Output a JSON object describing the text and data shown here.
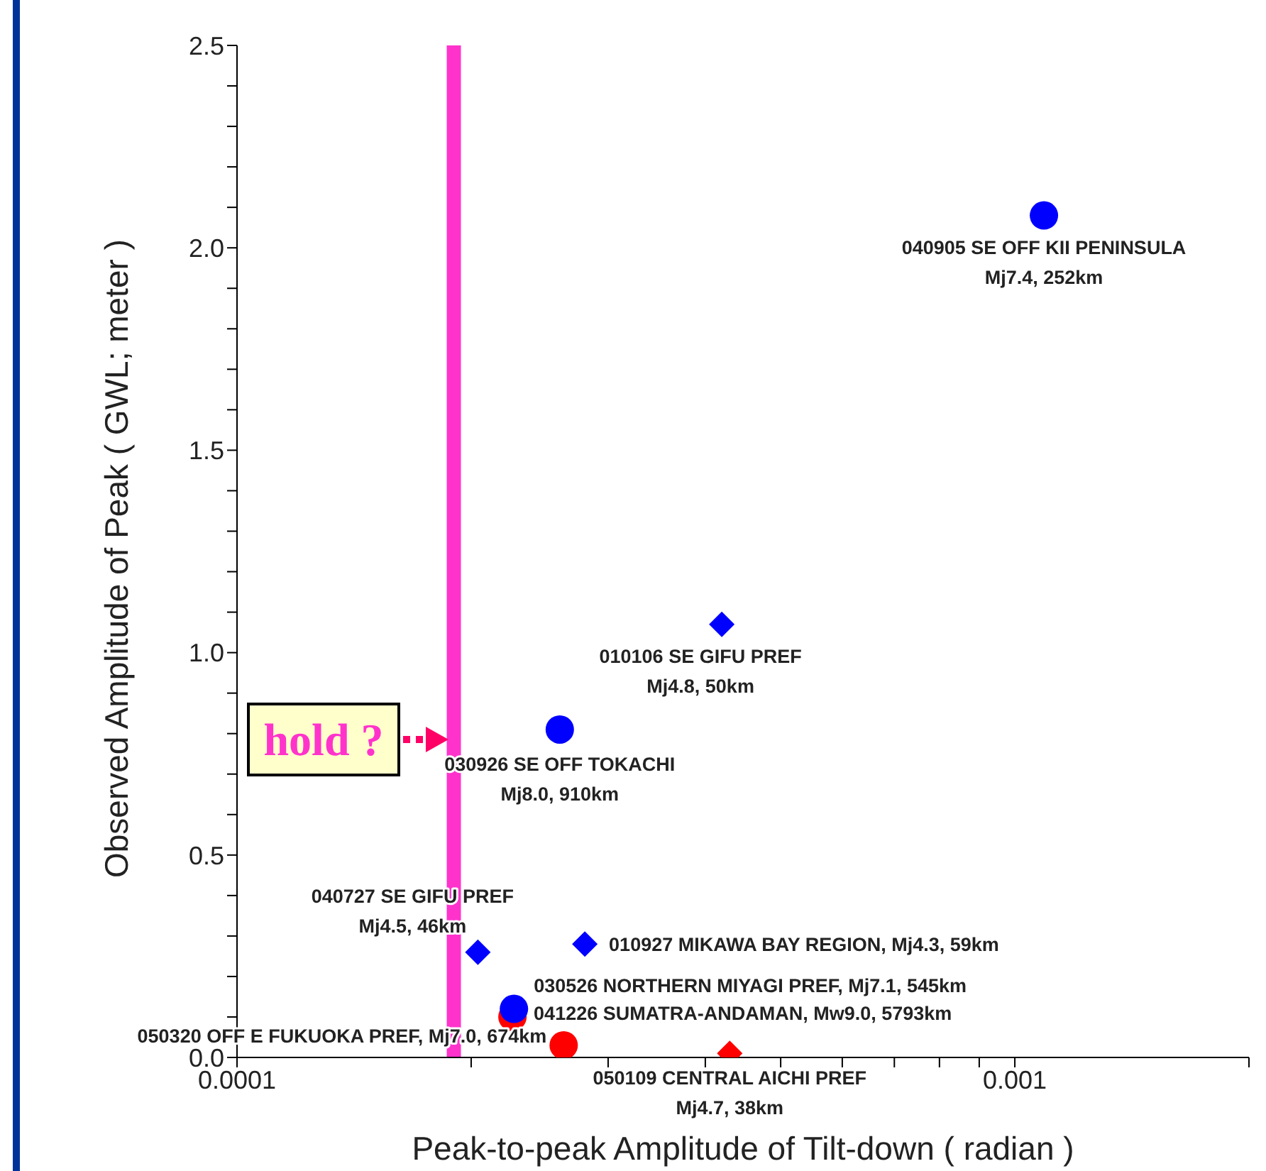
{
  "chart_data": {
    "type": "scatter",
    "xlabel": "Peak-to-peak Amplitude of Tilt-down ( radian )",
    "ylabel": "Observed Amplitude of Peak ( GWL; meter )",
    "log": "x",
    "xlim": [
      0.0001,
      0.002
    ],
    "xticks": [
      {
        "value": 0.0001,
        "label": "0.0001"
      },
      {
        "value": 0.0002,
        "label": null
      },
      {
        "value": 0.0003,
        "label": null
      },
      {
        "value": 0.0004,
        "label": null
      },
      {
        "value": 0.0005,
        "label": null
      },
      {
        "value": 0.0006,
        "label": null
      },
      {
        "value": 0.0007,
        "label": null
      },
      {
        "value": 0.0008,
        "label": null
      },
      {
        "value": 0.0009,
        "label": null
      },
      {
        "value": 0.001,
        "label": "0.001"
      },
      {
        "value": 0.002,
        "label": null
      }
    ],
    "ylim": [
      0,
      2.5
    ],
    "yticks": [
      {
        "value": 0,
        "label": "0.0"
      },
      {
        "value": 0.1,
        "label": null
      },
      {
        "value": 0.2,
        "label": null
      },
      {
        "value": 0.3,
        "label": null
      },
      {
        "value": 0.4,
        "label": null
      },
      {
        "value": 0.5,
        "label": "0.5"
      },
      {
        "value": 0.6,
        "label": null
      },
      {
        "value": 0.7,
        "label": null
      },
      {
        "value": 0.8,
        "label": null
      },
      {
        "value": 0.9,
        "label": null
      },
      {
        "value": 1,
        "label": "1.0"
      },
      {
        "value": 1.1,
        "label": null
      },
      {
        "value": 1.2,
        "label": null
      },
      {
        "value": 1.3,
        "label": null
      },
      {
        "value": 1.4,
        "label": null
      },
      {
        "value": 1.5,
        "label": "1.5"
      },
      {
        "value": 1.6,
        "label": null
      },
      {
        "value": 1.7,
        "label": null
      },
      {
        "value": 1.8,
        "label": null
      },
      {
        "value": 1.9,
        "label": null
      },
      {
        "value": 2,
        "label": "2.0"
      },
      {
        "value": 2.1,
        "label": null
      },
      {
        "value": 2.2,
        "label": null
      },
      {
        "value": 2.3,
        "label": null
      },
      {
        "value": 2.4,
        "label": null
      },
      {
        "value": 2.5,
        "label": "2.5"
      }
    ],
    "series": [
      {
        "color": "#0000ff",
        "marker": "circle",
        "x": [
          0.00109,
          0.00026,
          0.000227
        ],
        "values": [
          2.08,
          0.81,
          0.12
        ]
      },
      {
        "color": "#0000ff",
        "marker": "diamond",
        "x": [
          0.00042,
          0.000204,
          0.00028
        ],
        "values": [
          1.07,
          0.26,
          0.28
        ]
      },
      {
        "color": "#ff0000",
        "marker": "circle",
        "x": [
          0.000226,
          0.000263
        ],
        "values": [
          0.1,
          0.03
        ]
      },
      {
        "color": "#ff0000",
        "marker": "diamond",
        "x": [
          0.00043
        ],
        "values": [
          0.01
        ]
      }
    ],
    "annotations": [
      {
        "text": "040905 SE OFF KII PENINSULA\nMj7.4, 252km",
        "x": 0.00109,
        "y": 2.08
      },
      {
        "text": "010106 SE GIFU PREF\nMj4.8, 50km",
        "x": 0.00042,
        "y": 1.07
      },
      {
        "text": "030926 SE OFF TOKACHI\nMj8.0, 910km",
        "x": 0.00026,
        "y": 0.81
      },
      {
        "text": "040727 SE GIFU PREF\nMj4.5, 46km",
        "x": 0.000204,
        "y": 0.26
      },
      {
        "text": "010927 MIKAWA BAY REGION, Mj4.3, 59km",
        "x": 0.00028,
        "y": 0.28
      },
      {
        "text": "030526 NORTHERN MIYAGI PREF, Mj7.1, 545km",
        "x": 0.000227,
        "y": 0.12
      },
      {
        "text": "041226 SUMATRA-ANDAMAN, Mw9.0, 5793km",
        "x": 0.000226,
        "y": 0.1
      },
      {
        "text": "050320 OFF E FUKUOKA PREF, Mj7.0, 674km",
        "x": 0.000263,
        "y": 0.03
      },
      {
        "text": "050109 CENTRAL AICHI PREF\nMj4.7, 38km",
        "x": 0.00043,
        "y": 0.01
      }
    ],
    "ref_lines": [
      {
        "axis": "x",
        "value": 0.00019,
        "label": "hold ?",
        "color": "#ff33cc"
      }
    ]
  }
}
